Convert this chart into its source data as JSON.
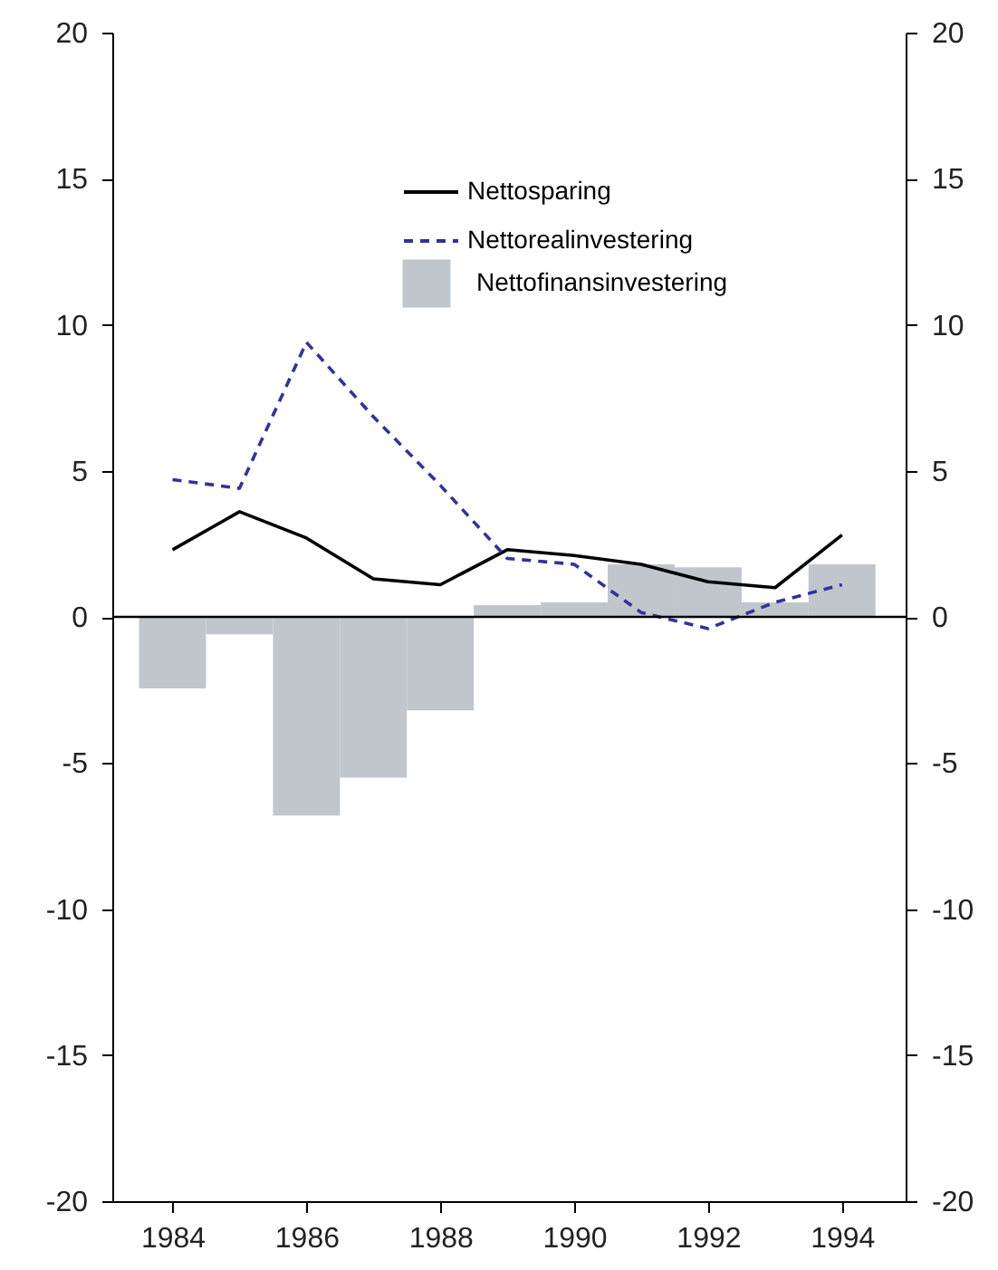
{
  "chart_data": {
    "type": "bar",
    "x": [
      1984,
      1985,
      1986,
      1987,
      1988,
      1989,
      1990,
      1991,
      1992,
      1993,
      1994
    ],
    "series": [
      {
        "name": "Nettosparing",
        "type": "line",
        "color": "#000000",
        "line_style": "solid",
        "values": [
          2.3,
          3.6,
          2.7,
          1.3,
          1.1,
          2.3,
          2.1,
          1.8,
          1.2,
          1.0,
          2.8
        ]
      },
      {
        "name": "Nettorealinvestering",
        "type": "line",
        "color": "#333399",
        "line_style": "dashed",
        "values": [
          4.7,
          4.4,
          9.4,
          6.85,
          4.5,
          2.0,
          1.8,
          0.15,
          -0.4,
          0.5,
          1.1
        ]
      },
      {
        "name": "Nettofinansinvestering",
        "color": "#c0c6cc",
        "values": [
          -2.45,
          -0.6,
          -6.8,
          -5.5,
          -3.2,
          0.4,
          0.5,
          1.8,
          1.7,
          0.5,
          1.8
        ]
      }
    ],
    "xlim": [
      1983.1,
      1994.95
    ],
    "xticks": [
      1984,
      1986,
      1988,
      1990,
      1992,
      1994
    ],
    "ylim": [
      -20,
      20
    ],
    "yticks": [
      -20,
      -15,
      -10,
      -5,
      0,
      5,
      10,
      15,
      20
    ],
    "y2lim": [
      -20,
      20
    ],
    "y2ticks": [
      -20,
      -15,
      -10,
      -5,
      0,
      5,
      10,
      15,
      20
    ],
    "ref_lines": [
      {
        "axis": "y",
        "value": 0,
        "color": "#000000"
      }
    ],
    "grid": false,
    "legend": "top right"
  }
}
